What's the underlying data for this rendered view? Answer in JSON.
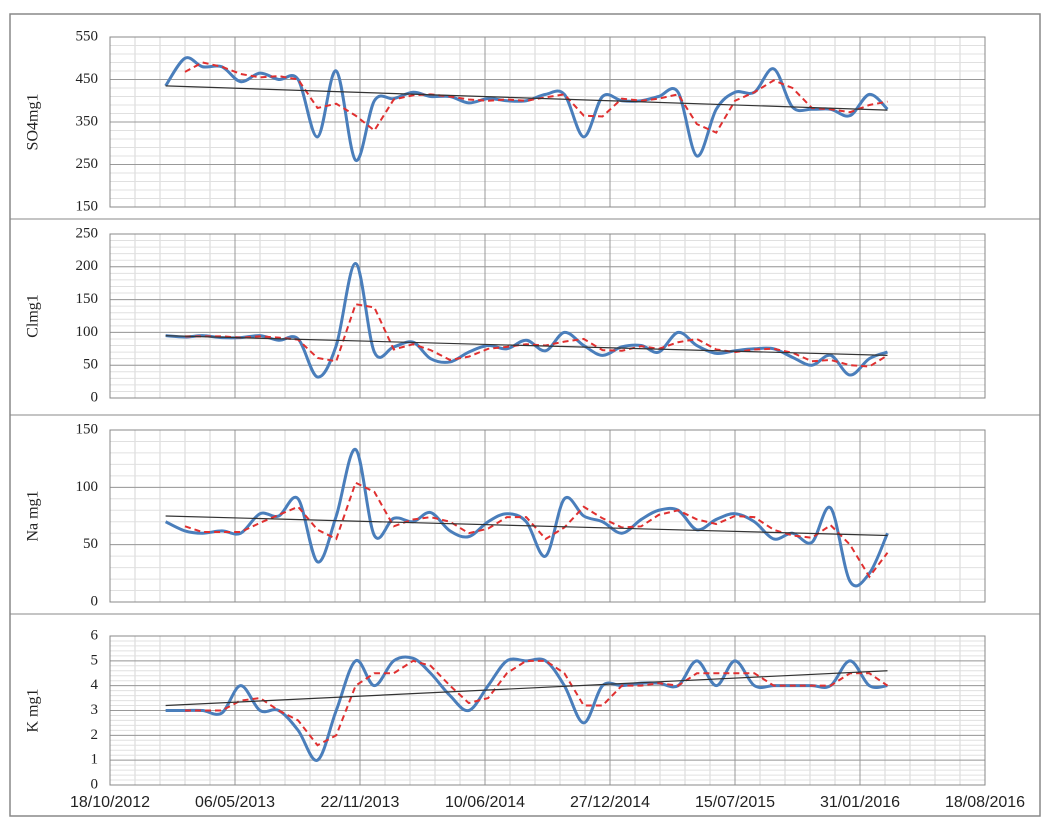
{
  "x_axis": {
    "xlim": [
      "2012-10-18",
      "2016-08-18"
    ],
    "xticks": [
      {
        "value": "2012-10-18",
        "label": "18/10/2012"
      },
      {
        "value": "2013-05-06",
        "label": "06/05/2013"
      },
      {
        "value": "2013-11-22",
        "label": "22/11/2013"
      },
      {
        "value": "2014-06-10",
        "label": "10/06/2014"
      },
      {
        "value": "2014-12-27",
        "label": "27/12/2014"
      },
      {
        "value": "2015-07-15",
        "label": "15/07/2015"
      },
      {
        "value": "2016-01-31",
        "label": "31/01/2016"
      },
      {
        "value": "2016-08-18",
        "label": "18/08/2016"
      }
    ],
    "x": [
      "2013-01",
      "2013-02",
      "2013-03",
      "2013-04",
      "2013-05",
      "2013-06",
      "2013-07",
      "2013-08",
      "2013-09",
      "2013-10",
      "2013-11",
      "2013-12",
      "2014-01",
      "2014-02",
      "2014-03",
      "2014-04",
      "2014-05",
      "2014-06",
      "2014-07",
      "2014-08",
      "2014-09",
      "2014-10",
      "2014-11",
      "2014-12",
      "2015-01",
      "2015-02",
      "2015-03",
      "2015-04",
      "2015-05",
      "2015-06",
      "2015-07",
      "2015-08",
      "2015-09",
      "2015-10",
      "2015-11",
      "2015-12",
      "2016-01",
      "2016-02",
      "2016-03"
    ]
  },
  "chart_data": [
    {
      "type": "line",
      "ylabel": "SO4mg1",
      "ylim": [
        150,
        550
      ],
      "yticks": [
        150,
        250,
        350,
        450,
        550
      ],
      "grid": true,
      "series": [
        {
          "color": "#4a7ebb",
          "style": "smooth",
          "values": [
            435,
            500,
            480,
            480,
            445,
            465,
            450,
            450,
            315,
            470,
            260,
            400,
            405,
            420,
            410,
            410,
            395,
            405,
            400,
            400,
            415,
            415,
            315,
            410,
            400,
            400,
            410,
            420,
            270,
            380,
            420,
            420,
            475,
            385,
            380,
            380,
            365,
            415,
            380
          ]
        },
        {
          "color": "#e03030",
          "style": "dashed",
          "values": [
            null,
            468,
            490,
            480,
            463,
            455,
            458,
            450,
            383,
            393,
            365,
            330,
            403,
            413,
            415,
            410,
            403,
            400,
            403,
            400,
            408,
            415,
            365,
            363,
            405,
            400,
            405,
            415,
            345,
            325,
            400,
            420,
            448,
            430,
            383,
            380,
            373,
            390,
            398
          ]
        },
        {
          "color": "#333333",
          "style": "trend",
          "x": [
            "2013-01",
            "2016-03"
          ],
          "values": [
            435,
            378
          ]
        }
      ]
    },
    {
      "type": "line",
      "ylabel": "Clmg1",
      "ylim": [
        0,
        250
      ],
      "yticks": [
        0,
        50,
        100,
        150,
        200,
        250
      ],
      "grid": true,
      "series": [
        {
          "color": "#4a7ebb",
          "style": "smooth",
          "values": [
            95,
            93,
            95,
            92,
            92,
            95,
            88,
            90,
            32,
            80,
            205,
            70,
            78,
            85,
            60,
            55,
            70,
            80,
            75,
            88,
            72,
            100,
            80,
            65,
            78,
            80,
            70,
            100,
            80,
            68,
            72,
            75,
            75,
            62,
            50,
            65,
            35,
            60,
            70
          ]
        },
        {
          "color": "#e03030",
          "style": "dashed",
          "values": [
            null,
            94,
            94,
            94,
            92,
            94,
            92,
            89,
            61,
            56,
            143,
            138,
            74,
            82,
            73,
            58,
            63,
            75,
            78,
            82,
            80,
            86,
            90,
            73,
            72,
            79,
            75,
            85,
            90,
            74,
            70,
            74,
            75,
            69,
            56,
            58,
            50,
            48,
            65
          ]
        },
        {
          "color": "#333333",
          "style": "trend",
          "x": [
            "2013-01",
            "2016-03"
          ],
          "values": [
            95,
            65
          ]
        }
      ]
    },
    {
      "type": "line",
      "ylabel": "Na mg1",
      "ylim": [
        0,
        150
      ],
      "yticks": [
        0,
        50,
        100,
        150
      ],
      "grid": true,
      "series": [
        {
          "color": "#4a7ebb",
          "style": "smooth",
          "values": [
            70,
            62,
            60,
            62,
            60,
            77,
            75,
            90,
            35,
            75,
            133,
            58,
            73,
            70,
            78,
            62,
            57,
            70,
            77,
            70,
            40,
            90,
            75,
            70,
            60,
            72,
            80,
            80,
            63,
            72,
            77,
            70,
            55,
            60,
            52,
            82,
            18,
            25,
            60
          ]
        },
        {
          "color": "#e03030",
          "style": "dashed",
          "values": [
            null,
            66,
            61,
            61,
            61,
            69,
            76,
            83,
            63,
            55,
            104,
            96,
            66,
            72,
            74,
            70,
            60,
            64,
            74,
            74,
            55,
            65,
            83,
            73,
            65,
            66,
            76,
            80,
            72,
            68,
            75,
            74,
            63,
            58,
            56,
            67,
            50,
            22,
            43
          ]
        },
        {
          "color": "#333333",
          "style": "trend",
          "x": [
            "2013-01",
            "2016-03"
          ],
          "values": [
            75,
            58
          ]
        }
      ]
    },
    {
      "type": "line",
      "ylabel": "K mg1",
      "ylim": [
        0,
        6
      ],
      "yticks": [
        0,
        1,
        2,
        3,
        4,
        5,
        6
      ],
      "grid": true,
      "series": [
        {
          "color": "#4a7ebb",
          "style": "smooth",
          "values": [
            3,
            3,
            3,
            2.9,
            4,
            3,
            3,
            2.2,
            1,
            3,
            5,
            4,
            5,
            5.1,
            4.5,
            3.6,
            3,
            4,
            5,
            5,
            5,
            4,
            2.5,
            4,
            4,
            4.1,
            4.1,
            4,
            5,
            4,
            5,
            4,
            4,
            4,
            4,
            4,
            5,
            4,
            4
          ]
        },
        {
          "color": "#e03030",
          "style": "dashed",
          "values": [
            null,
            3,
            3,
            3,
            3.4,
            3.5,
            3,
            2.6,
            1.6,
            2,
            4,
            4.5,
            4.5,
            5,
            4.8,
            4,
            3.3,
            3.5,
            4.5,
            5,
            5,
            4.5,
            3.2,
            3.2,
            4,
            4,
            4.1,
            4,
            4.5,
            4.5,
            4.5,
            4.5,
            4,
            4,
            4,
            4,
            4.5,
            4.5,
            4
          ]
        },
        {
          "color": "#333333",
          "style": "trend",
          "x": [
            "2013-01",
            "2016-03"
          ],
          "values": [
            3.2,
            4.6
          ]
        }
      ]
    }
  ]
}
